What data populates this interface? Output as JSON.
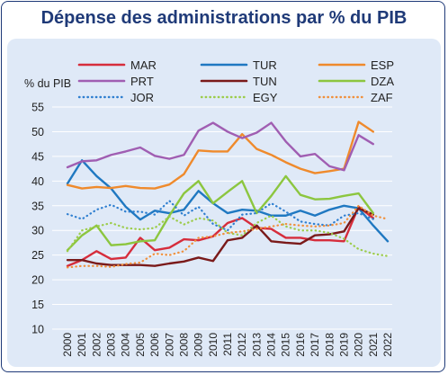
{
  "colors": {
    "title": "#1f3a78",
    "panel_bg": "#dfe9f7",
    "grid": "#ffffff"
  },
  "chart_data": {
    "type": "line",
    "title": "Dépense des administrations par % du PIB",
    "ylabel": "% du PIB",
    "xlabel": "",
    "ylim": [
      10,
      55
    ],
    "yticks": [
      10,
      15,
      20,
      25,
      30,
      35,
      40,
      45,
      50,
      55
    ],
    "grid": "horizontal",
    "legend": "top",
    "x": [
      "2000",
      "2001",
      "2002",
      "2003",
      "2004",
      "2005",
      "2006",
      "2007",
      "2008",
      "2009",
      "2010",
      "2011",
      "2012",
      "2013",
      "2014",
      "2015",
      "2016",
      "2017",
      "2018",
      "2019",
      "2020",
      "2021",
      "2022"
    ],
    "series": [
      {
        "name": "MAR",
        "color": "#d62d3c",
        "style": "solid",
        "values": [
          22.8,
          24.0,
          25.8,
          24.2,
          24.5,
          28.5,
          26.0,
          26.5,
          28.2,
          28.0,
          28.8,
          31.5,
          32.5,
          30.5,
          30.3,
          28.5,
          28.5,
          28.0,
          28.0,
          27.8,
          34.8,
          32.5,
          null
        ]
      },
      {
        "name": "TUR",
        "color": "#1f78c1",
        "style": "solid",
        "values": [
          39.5,
          44.2,
          41.0,
          38.5,
          34.8,
          32.2,
          34.0,
          33.5,
          34.2,
          38.0,
          35.5,
          33.5,
          34.2,
          34.0,
          33.0,
          33.0,
          34.0,
          33.0,
          34.2,
          35.0,
          34.5,
          31.0,
          27.8
        ]
      },
      {
        "name": "ESP",
        "color": "#ef8a2c",
        "style": "solid",
        "values": [
          39.2,
          38.5,
          38.8,
          38.6,
          39.0,
          38.6,
          38.5,
          39.3,
          41.4,
          46.2,
          46.0,
          46.0,
          49.5,
          46.5,
          45.3,
          43.8,
          42.5,
          41.6,
          42.0,
          42.5,
          52.0,
          50.0,
          null
        ]
      },
      {
        "name": "PRT",
        "color": "#a05eb2",
        "style": "solid",
        "values": [
          42.8,
          44.0,
          44.2,
          45.3,
          46.0,
          46.8,
          45.1,
          44.5,
          45.3,
          50.2,
          51.8,
          50.0,
          48.7,
          49.8,
          51.8,
          48.0,
          45.0,
          45.5,
          43.0,
          42.2,
          49.3,
          47.5,
          null
        ]
      },
      {
        "name": "TUN",
        "color": "#7a1a1a",
        "style": "solid",
        "values": [
          24.0,
          24.0,
          23.3,
          23.0,
          23.0,
          23.0,
          22.8,
          23.3,
          23.7,
          24.5,
          23.8,
          28.0,
          28.5,
          31.0,
          27.8,
          27.5,
          27.3,
          29.0,
          29.2,
          29.8,
          34.5,
          33.2,
          null
        ]
      },
      {
        "name": "DZA",
        "color": "#8cc63f",
        "style": "solid",
        "values": [
          26.0,
          29.0,
          31.0,
          27.0,
          27.2,
          27.8,
          28.0,
          33.0,
          37.5,
          40.0,
          35.5,
          37.8,
          40.0,
          33.5,
          37.0,
          41.0,
          37.2,
          36.3,
          36.4,
          37.0,
          37.5,
          33.5,
          null
        ]
      },
      {
        "name": "JOR",
        "color": "#2f7fd0",
        "style": "dotted",
        "values": [
          33.3,
          32.3,
          34.2,
          35.2,
          33.8,
          33.8,
          33.2,
          36.0,
          33.0,
          34.8,
          31.3,
          30.0,
          33.2,
          33.5,
          35.5,
          33.8,
          31.8,
          31.3,
          31.0,
          33.0,
          33.5,
          32.3,
          null
        ]
      },
      {
        "name": "EGY",
        "color": "#9ccc4a",
        "style": "dotted",
        "values": [
          25.8,
          30.0,
          30.8,
          31.5,
          30.5,
          30.2,
          30.5,
          32.8,
          31.2,
          32.5,
          32.0,
          29.5,
          29.0,
          31.5,
          33.0,
          30.8,
          30.0,
          30.0,
          29.5,
          28.3,
          26.2,
          25.3,
          24.8
        ]
      },
      {
        "name": "ZAF",
        "color": "#f0903c",
        "style": "dotted",
        "values": [
          22.5,
          22.8,
          22.8,
          22.6,
          23.2,
          23.5,
          25.3,
          25.0,
          25.8,
          28.5,
          28.8,
          29.5,
          29.8,
          30.3,
          30.8,
          31.3,
          31.0,
          30.8,
          31.0,
          31.5,
          35.0,
          33.0,
          32.3
        ]
      }
    ]
  }
}
